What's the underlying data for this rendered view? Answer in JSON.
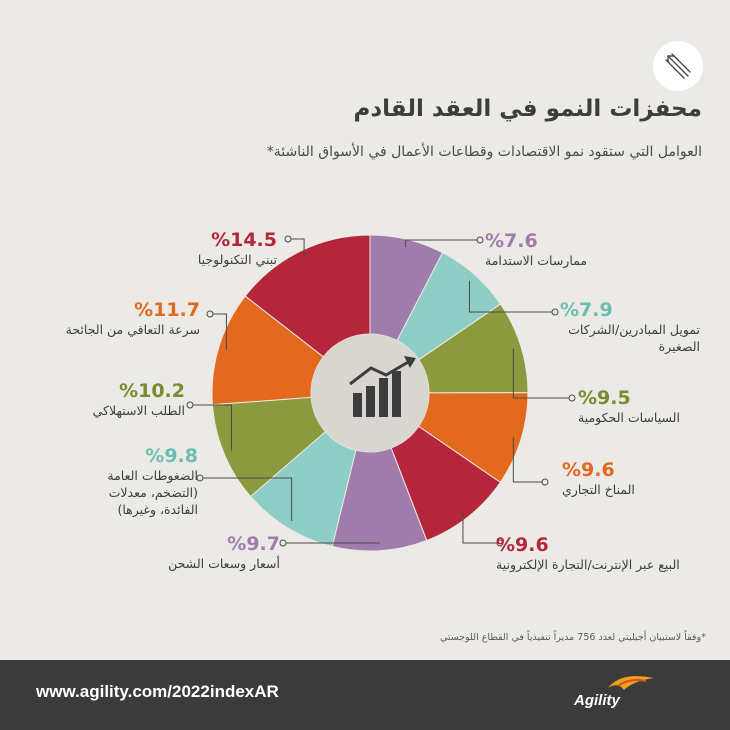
{
  "header": {
    "title": "محفزات النمو في العقد القادم",
    "subtitle": "العوامل التي ستقود نمو الاقتصادات وقطاعات الأعمال في الأسواق الناشئة*"
  },
  "footnote": "*وفقاً لاستبيان أجيليتي لعدد 756 مديراً تنفيذياً في القطاع اللوجستي",
  "footer": {
    "url": "www.agility.com/2022indexAR",
    "brand": "Agility"
  },
  "colors": {
    "red": "#b5263c",
    "purple": "#a07cac",
    "teal": "#8ecec6",
    "olive": "#8a9a3c",
    "orange": "#e2691e",
    "background": "#eceae6",
    "footer": "#3b3b3b"
  },
  "chart_data": {
    "type": "pie",
    "donut": true,
    "center_icon": "bar-chart-growth-icon",
    "categories": [
      "ممارسات الاستدامة",
      "تمويل المبادرين/الشركات الصغيرة",
      "السياسات الحكومية",
      "المناخ التجاري",
      "البيع عبر الإنترنت/التجارة الإلكترونية",
      "أسعار وسعات الشحن",
      "الضغوطات العامة (التضخم، معدلات الفائدة، وغيرها)",
      "الطلب الاستهلاكي",
      "سرعة التعافي من الجائحة",
      "تبني التكنولوجيا"
    ],
    "values": [
      7.6,
      7.9,
      9.5,
      9.6,
      9.6,
      9.7,
      9.8,
      10.2,
      11.7,
      14.5
    ],
    "value_labels": [
      "%7.6",
      "%7.9",
      "%9.5",
      "%9.6",
      "%9.6",
      "%9.7",
      "%9.8",
      "%10.2",
      "%11.7",
      "%14.5"
    ],
    "colors": [
      "#a07cac",
      "#8ecec6",
      "#8a9a3c",
      "#e2691e",
      "#b5263c",
      "#a07cac",
      "#8ecec6",
      "#8a9a3c",
      "#e2691e",
      "#b5263c"
    ]
  }
}
